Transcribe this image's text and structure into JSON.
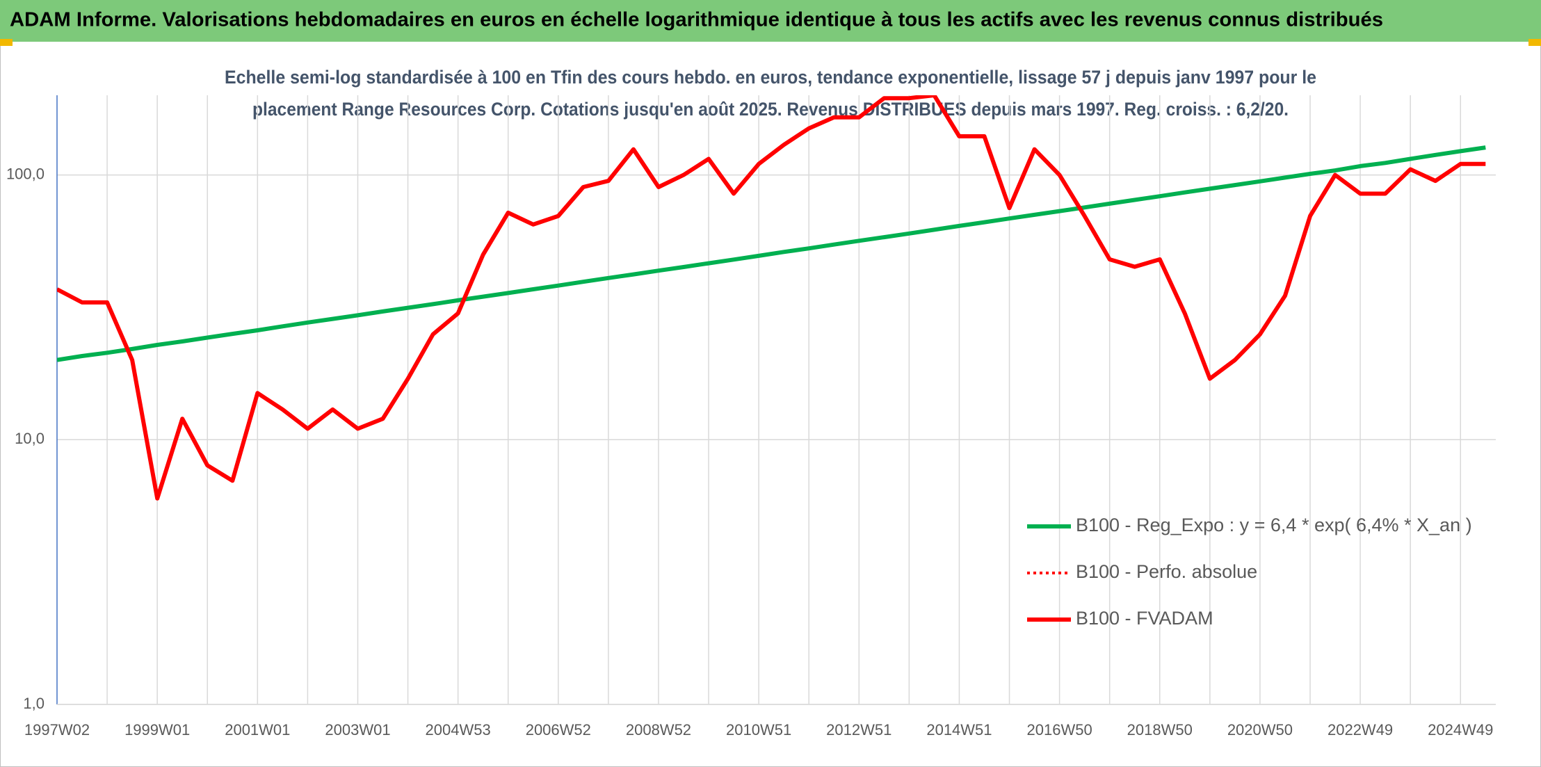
{
  "chart_data": {
    "type": "line",
    "title": "ADAM Informe. Valorisations hebdomadaires en euros en échelle logarithmique identique à tous les actifs avec les revenus connus distribués",
    "subtitle": [
      "Echelle semi-log standardisée à 100 en Tfin des cours hebdo. en euros, tendance exponentielle, lissage 57 j depuis janv 1997 pour le",
      "placement Range Resources Corp. Cotations jusqu'en août 2025. Revenus DISTRIBUES depuis mars 1997. Reg. croiss. : 6,2/20."
    ],
    "categories": [
      "1997W02",
      null,
      null,
      null,
      "1999W01",
      null,
      null,
      null,
      "2001W01",
      null,
      null,
      null,
      "2003W01",
      null,
      null,
      null,
      "2004W53",
      null,
      null,
      null,
      "2006W52",
      null,
      null,
      null,
      "2008W52",
      null,
      null,
      null,
      "2010W51",
      null,
      null,
      null,
      "2012W51",
      null,
      null,
      null,
      "2014W51",
      null,
      null,
      null,
      "2016W50",
      null,
      null,
      null,
      "2018W50",
      null,
      null,
      null,
      "2020W50",
      null,
      null,
      null,
      "2022W49",
      null,
      null,
      null,
      "2024W49",
      null
    ],
    "log_scale": true,
    "ylim": [
      1,
      200
    ],
    "yticks": [
      {
        "value": 1,
        "label": "1,0"
      },
      {
        "value": 10,
        "label": "10,0"
      },
      {
        "value": 100,
        "label": "100,0"
      }
    ],
    "grid": true,
    "legend_position": "lower right",
    "series": [
      {
        "name": "B100 - Reg_Expo : y = 6,4 * exp( 6,4% *  X_an )",
        "color": "#00b050",
        "style": "solid",
        "values": [
          20.0,
          20.7,
          21.3,
          22.0,
          22.8,
          23.5,
          24.3,
          25.1,
          25.9,
          26.8,
          27.7,
          28.6,
          29.5,
          30.5,
          31.5,
          32.5,
          33.6,
          34.7,
          35.8,
          37.0,
          38.2,
          39.5,
          40.8,
          42.1,
          43.5,
          44.9,
          46.4,
          47.9,
          49.5,
          51.2,
          52.8,
          54.6,
          56.4,
          58.2,
          60.1,
          62.1,
          64.2,
          66.3,
          68.5,
          70.7,
          73.0,
          75.4,
          77.9,
          80.5,
          83.1,
          85.9,
          88.7,
          91.6,
          94.6,
          97.7,
          101,
          104,
          108,
          111,
          115,
          119,
          123,
          127
        ]
      },
      {
        "name": "B100 - Perfo. absolue",
        "color": "#ff0000",
        "style": "dotted",
        "values": [
          37,
          33,
          33,
          20,
          6,
          12,
          8,
          7,
          15,
          13,
          11,
          13,
          11,
          12,
          17,
          25,
          30,
          50,
          72,
          65,
          70,
          90,
          95,
          125,
          90,
          100,
          115,
          85,
          110,
          130,
          150,
          165,
          165,
          195,
          195,
          200,
          140,
          140,
          75,
          125,
          100,
          70,
          48,
          45,
          48,
          30,
          17,
          20,
          25,
          35,
          70,
          100,
          85,
          85,
          105,
          95,
          110,
          110
        ]
      },
      {
        "name": "B100 - FVADAM",
        "color": "#ff0000",
        "style": "solid",
        "values": [
          37,
          33,
          33,
          20,
          6,
          12,
          8,
          7,
          15,
          13,
          11,
          13,
          11,
          12,
          17,
          25,
          30,
          50,
          72,
          65,
          70,
          90,
          95,
          125,
          90,
          100,
          115,
          85,
          110,
          130,
          150,
          165,
          165,
          195,
          195,
          200,
          140,
          140,
          75,
          125,
          100,
          70,
          48,
          45,
          48,
          30,
          17,
          20,
          25,
          35,
          70,
          100,
          85,
          85,
          105,
          95,
          110,
          110
        ]
      }
    ]
  }
}
